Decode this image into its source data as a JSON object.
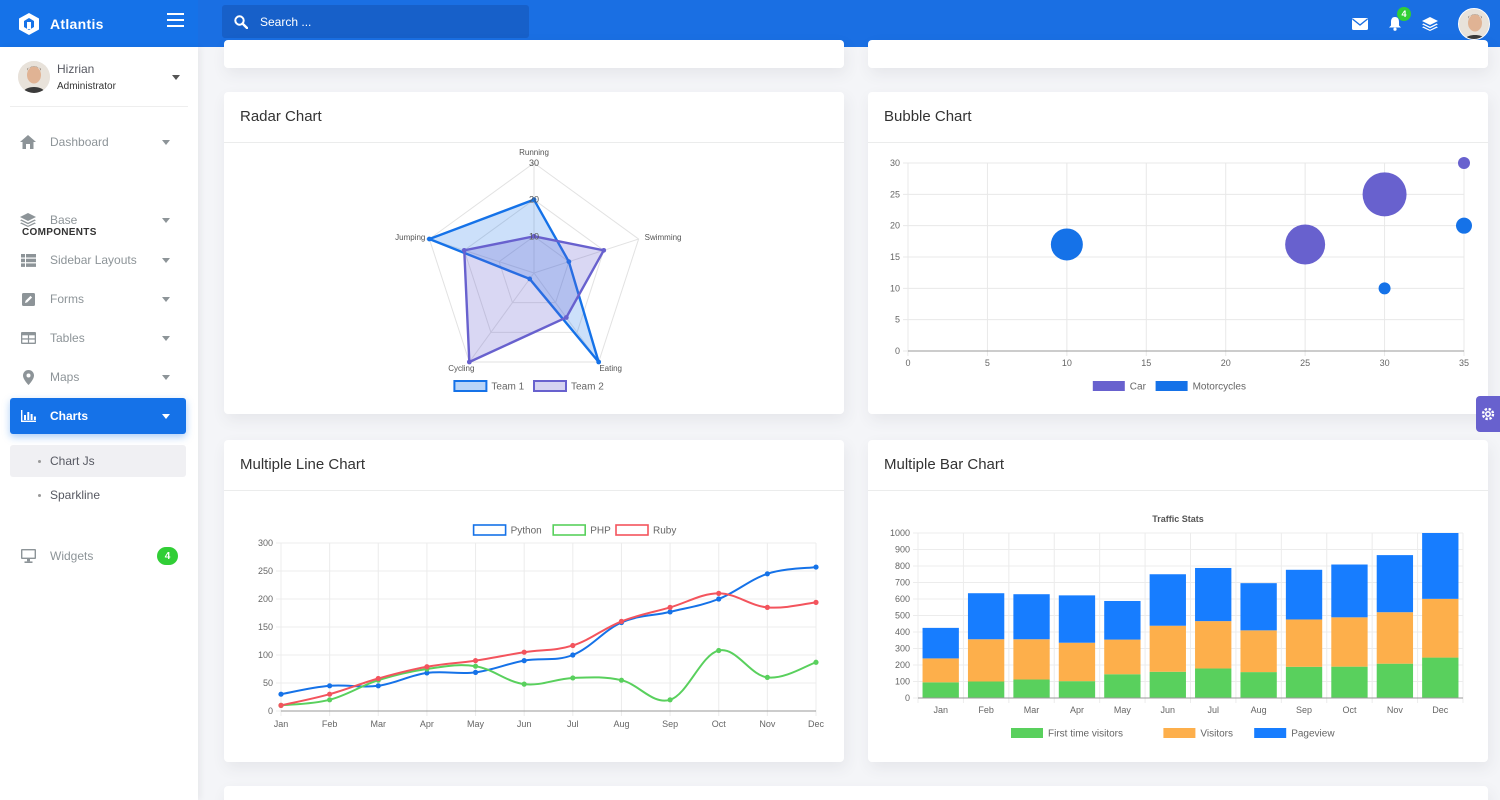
{
  "app": {
    "name": "Atlantis"
  },
  "search": {
    "placeholder": "Search ..."
  },
  "header": {
    "notification_count": "4"
  },
  "user": {
    "name": "Hizrian",
    "role": "Administrator"
  },
  "sidebar": {
    "section_label": "COMPONENTS",
    "items": [
      {
        "label": "Dashboard",
        "icon": "home-icon"
      },
      {
        "label": "Base",
        "icon": "layers-icon"
      },
      {
        "label": "Sidebar Layouts",
        "icon": "th-list-icon"
      },
      {
        "label": "Forms",
        "icon": "pen-square-icon"
      },
      {
        "label": "Tables",
        "icon": "table-icon"
      },
      {
        "label": "Maps",
        "icon": "map-marker-icon"
      },
      {
        "label": "Charts",
        "icon": "bar-chart-icon"
      },
      {
        "label": "Widgets",
        "icon": "desktop-icon",
        "badge": "4"
      }
    ],
    "sub_items": [
      {
        "label": "Chart Js"
      },
      {
        "label": "Sparkline"
      }
    ]
  },
  "colors": {
    "primary": "#1572e8",
    "secondary": "#6861ce",
    "success": "#31ce36",
    "danger": "#f3545d",
    "warning": "#fdaf4b"
  },
  "cards": {
    "radar": {
      "title": "Radar Chart"
    },
    "bubble": {
      "title": "Bubble Chart"
    },
    "line": {
      "title": "Multiple Line Chart"
    },
    "bar": {
      "title": "Multiple Bar Chart"
    }
  },
  "chart_data": [
    {
      "type": "radar",
      "labels": [
        "Running",
        "Swimming",
        "Eating",
        "Cycling",
        "Jumping"
      ],
      "ticks": [
        "10",
        "20",
        "30"
      ],
      "rmax": 30,
      "series": [
        {
          "name": "Team 1",
          "color": "#1572e8",
          "values": [
            20,
            10,
            30,
            2,
            30
          ]
        },
        {
          "name": "Team 2",
          "color": "#6861ce",
          "values": [
            10,
            20,
            15,
            30,
            20
          ]
        }
      ]
    },
    {
      "type": "scatter",
      "title": "",
      "xlim": [
        0,
        35
      ],
      "ylim": [
        0,
        30
      ],
      "xticks": [
        "0",
        "5",
        "10",
        "15",
        "20",
        "25",
        "30",
        "35"
      ],
      "yticks": [
        "0",
        "5",
        "10",
        "15",
        "20",
        "25",
        "30"
      ],
      "series": [
        {
          "name": "Car",
          "color": "#6861ce",
          "points": [
            {
              "x": 25,
              "y": 17,
              "r": 20
            },
            {
              "x": 30,
              "y": 25,
              "r": 22
            },
            {
              "x": 35,
              "y": 30,
              "r": 6
            }
          ]
        },
        {
          "name": "Motorcycles",
          "color": "#1572e8",
          "points": [
            {
              "x": 10,
              "y": 17,
              "r": 16
            },
            {
              "x": 30,
              "y": 10,
              "r": 6
            },
            {
              "x": 35,
              "y": 20,
              "r": 8
            }
          ]
        }
      ]
    },
    {
      "type": "line",
      "categories": [
        "Jan",
        "Feb",
        "Mar",
        "Apr",
        "May",
        "Jun",
        "Jul",
        "Aug",
        "Sep",
        "Oct",
        "Nov",
        "Dec"
      ],
      "ylim": [
        0,
        300
      ],
      "yticks": [
        "0",
        "50",
        "100",
        "150",
        "200",
        "250",
        "300"
      ],
      "series": [
        {
          "name": "Python",
          "color": "#1572e8",
          "values": [
            30,
            45,
            45,
            68,
            69,
            90,
            100,
            158,
            177,
            200,
            245,
            257
          ]
        },
        {
          "name": "PHP",
          "color": "#59d05d",
          "values": [
            10,
            20,
            55,
            75,
            80,
            48,
            59,
            55,
            20,
            108,
            60,
            87
          ]
        },
        {
          "name": "Ruby",
          "color": "#f3545d",
          "values": [
            10,
            30,
            58,
            79,
            90,
            105,
            117,
            160,
            185,
            210,
            185,
            194
          ]
        }
      ]
    },
    {
      "type": "bar",
      "title": "Traffic Stats",
      "stacked": true,
      "categories": [
        "Jan",
        "Feb",
        "Mar",
        "Apr",
        "May",
        "Jun",
        "Jul",
        "Aug",
        "Sep",
        "Oct",
        "Nov",
        "Dec"
      ],
      "ylim": [
        0,
        1000
      ],
      "yticks": [
        "0",
        "100",
        "200",
        "300",
        "400",
        "500",
        "600",
        "700",
        "800",
        "900",
        "1000"
      ],
      "series": [
        {
          "name": "First time visitors",
          "color": "#59d05d",
          "values": [
            95,
            100,
            112,
            102,
            144,
            159,
            179,
            157,
            189,
            190,
            208,
            245
          ]
        },
        {
          "name": "Visitors",
          "color": "#fdaf4b",
          "values": [
            145,
            256,
            244,
            233,
            210,
            279,
            287,
            253,
            287,
            299,
            312,
            356
          ]
        },
        {
          "name": "Pageview",
          "color": "#177dff",
          "values": [
            185,
            279,
            273,
            287,
            234,
            312,
            322,
            286,
            301,
            320,
            346,
            399
          ]
        }
      ]
    }
  ]
}
